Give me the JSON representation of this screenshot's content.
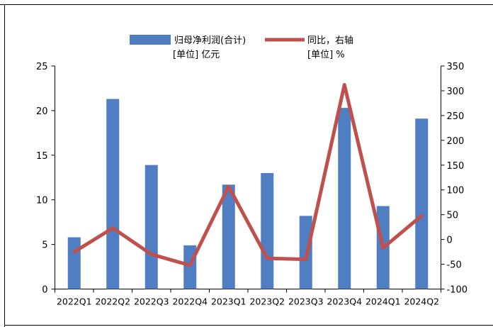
{
  "chart_data": {
    "type": "bar",
    "categories": [
      "2022Q1",
      "2022Q2",
      "2022Q3",
      "2022Q4",
      "2023Q1",
      "2023Q2",
      "2023Q3",
      "2023Q4",
      "2024Q1",
      "2024Q2"
    ],
    "series": [
      {
        "name": "归母净利润(合计)",
        "kind": "bar",
        "axis": "left",
        "unit_label": "[单位] 亿元",
        "color": "#4F7EC2",
        "values": [
          5.8,
          21.3,
          13.9,
          4.9,
          11.7,
          13.0,
          8.2,
          20.3,
          9.3,
          19.1
        ]
      },
      {
        "name": "同比，右轴",
        "kind": "line",
        "axis": "right",
        "unit_label": "[单位] %",
        "color": "#C0504D",
        "values": [
          -25,
          23,
          -30,
          -52,
          107,
          -38,
          -40,
          312,
          -17,
          48
        ]
      }
    ],
    "y_left": {
      "lim": [
        0,
        25
      ],
      "ticks": [
        0,
        5,
        10,
        15,
        20,
        25
      ]
    },
    "y_right": {
      "lim": [
        -100,
        350
      ],
      "ticks": [
        -100,
        -50,
        0,
        50,
        100,
        150,
        200,
        250,
        300,
        350
      ]
    },
    "legend_position": "top-center",
    "grid": false
  }
}
